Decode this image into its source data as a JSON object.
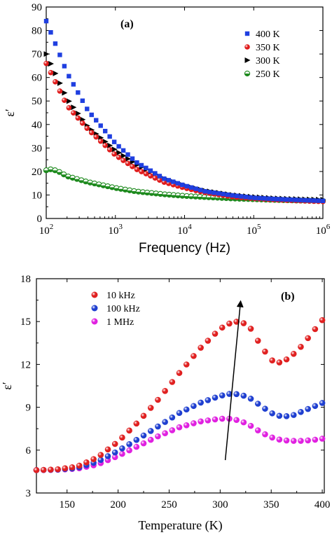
{
  "chart_data": [
    {
      "type": "scatter",
      "panel_label": "(a)",
      "xlabel": "Frequency (Hz)",
      "ylabel": "ε′",
      "xscale": "log",
      "xlim": [
        100,
        1000000
      ],
      "ylim": [
        0,
        90
      ],
      "x_tick_labels": [
        {
          "base": "10",
          "exp": "2"
        },
        {
          "base": "10",
          "exp": "3"
        },
        {
          "base": "10",
          "exp": "4"
        },
        {
          "base": "10",
          "exp": "5"
        },
        {
          "base": "10",
          "exp": "6"
        }
      ],
      "y_tick_labels": [
        "0",
        "10",
        "20",
        "30",
        "40",
        "50",
        "60",
        "70",
        "80",
        "90"
      ],
      "legend_position": "top-right",
      "series": [
        {
          "name": "400 K",
          "marker": "square",
          "color": "#1f3fe0",
          "x": [
            100,
            200,
            400,
            1000,
            2000,
            5000,
            10000,
            20000,
            50000,
            100000,
            200000,
            500000,
            1000000
          ],
          "y": [
            84,
            62,
            46,
            32,
            24,
            17,
            14,
            11.5,
            9.8,
            8.8,
            8.3,
            7.8,
            7.5
          ]
        },
        {
          "name": "350 K",
          "marker": "circle",
          "color": "#e01a1a",
          "x": [
            100,
            200,
            400,
            1000,
            2000,
            5000,
            10000,
            20000,
            50000,
            100000,
            200000,
            500000,
            1000000
          ],
          "y": [
            66,
            48,
            38,
            27,
            21,
            15.5,
            13,
            11,
            9.2,
            8.5,
            8,
            7.5,
            7.2
          ]
        },
        {
          "name": "300 K",
          "marker": "triangle-right",
          "color": "#000000",
          "x": [
            100,
            200,
            400,
            1000,
            2000,
            5000,
            10000,
            20000,
            50000,
            100000,
            200000,
            500000,
            1000000
          ],
          "y": [
            70,
            51,
            39,
            29,
            23,
            17,
            14,
            11.8,
            10,
            9.2,
            8.6,
            8.2,
            8
          ]
        },
        {
          "name": "250 K",
          "marker": "half-circle",
          "color": "#1e8a1e",
          "x": [
            100,
            120,
            150,
            200,
            400,
            1000,
            2000,
            5000,
            10000,
            20000,
            50000,
            100000,
            200000,
            500000,
            1000000
          ],
          "y": [
            20.5,
            21,
            20,
            18,
            15.5,
            13,
            11.5,
            10.3,
            9.6,
            9.1,
            8.5,
            8.2,
            7.9,
            7.6,
            7.4
          ]
        }
      ]
    },
    {
      "type": "scatter",
      "panel_label": "(b)",
      "xlabel": "Temperature (K)",
      "ylabel": "ε′",
      "xlim": [
        120,
        402
      ],
      "ylim": [
        3,
        18
      ],
      "x_tick_labels": [
        "150",
        "200",
        "250",
        "300",
        "350",
        "400"
      ],
      "y_tick_labels": [
        "3",
        "6",
        "9",
        "12",
        "15",
        "18"
      ],
      "legend_position": "top-left",
      "series": [
        {
          "name": "10 kHz",
          "marker": "sphere",
          "color": "#e02020",
          "x": [
            120,
            140,
            160,
            180,
            200,
            220,
            240,
            260,
            280,
            300,
            310,
            320,
            330,
            340,
            350,
            360,
            370,
            380,
            390,
            400
          ],
          "y": [
            4.6,
            4.65,
            4.85,
            5.5,
            6.6,
            8,
            9.6,
            11.4,
            13.1,
            14.5,
            14.9,
            15.05,
            14.5,
            13.3,
            12.3,
            12.1,
            12.6,
            13.3,
            14.2,
            15.1
          ]
        },
        {
          "name": "100 kHz",
          "marker": "sphere",
          "color": "#1f3fd0",
          "x": [
            120,
            140,
            160,
            180,
            200,
            220,
            240,
            260,
            280,
            300,
            310,
            320,
            330,
            340,
            350,
            360,
            370,
            380,
            390,
            400
          ],
          "y": [
            4.6,
            4.63,
            4.75,
            5.2,
            5.95,
            6.8,
            7.7,
            8.6,
            9.3,
            9.8,
            9.95,
            9.9,
            9.6,
            9.1,
            8.6,
            8.35,
            8.4,
            8.7,
            9,
            9.3
          ]
        },
        {
          "name": "1 MHz",
          "marker": "sphere",
          "color": "#e020e0",
          "x": [
            120,
            140,
            160,
            180,
            200,
            220,
            240,
            260,
            280,
            300,
            310,
            320,
            330,
            340,
            350,
            360,
            370,
            380,
            390,
            400
          ],
          "y": [
            4.6,
            4.62,
            4.7,
            5.0,
            5.6,
            6.3,
            7.0,
            7.6,
            8.0,
            8.2,
            8.2,
            8.05,
            7.7,
            7.25,
            6.9,
            6.7,
            6.65,
            6.65,
            6.7,
            6.8
          ]
        }
      ],
      "arrow": {
        "from": [
          305,
          5.3
        ],
        "to": [
          320,
          16.4
        ]
      }
    }
  ]
}
